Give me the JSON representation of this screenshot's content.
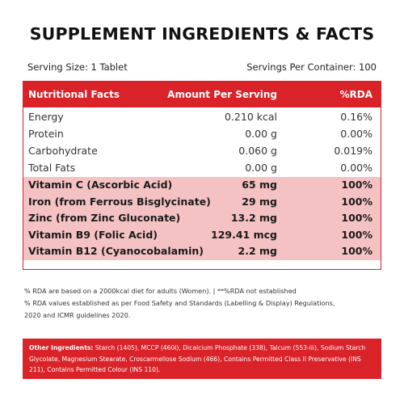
{
  "title": "SUPPLEMENT INGREDIENTS & FACTS",
  "serving_size": "Serving Size: 1 Tablet",
  "servings_per_container": "Servings Per Container: 100",
  "table": {
    "headers": [
      "Nutritional Facts",
      "Amount Per Serving",
      "%RDA"
    ],
    "rows": [
      {
        "name": "Energy",
        "amount": "0.210 kcal",
        "rda": "0.16%",
        "highlight": false
      },
      {
        "name": "Protein",
        "amount": "0.00 g",
        "rda": "0.00%",
        "highlight": false
      },
      {
        "name": "Carbohydrate",
        "amount": "0.060 g",
        "rda": "0.019%",
        "highlight": false
      },
      {
        "name": "Total Fats",
        "amount": "0.00 g",
        "rda": "0.00%",
        "highlight": false
      },
      {
        "name": "Vitamin C (Ascorbic Acid)",
        "amount": "65 mg",
        "rda": "100%",
        "highlight": true
      },
      {
        "name": "Iron (from Ferrous Bisglycinate)",
        "amount": "29 mg",
        "rda": "100%",
        "highlight": true
      },
      {
        "name": "Zinc (from Zinc Gluconate)",
        "amount": "13.2 mg",
        "rda": "100%",
        "highlight": true
      },
      {
        "name": "Vitamin B9 (Folic Acid)",
        "amount": "129.41 mcg",
        "rda": "100%",
        "highlight": true
      },
      {
        "name": "Vitamin B12 (Cyanocobalamin)",
        "amount": "2.2 mg",
        "rda": "100%",
        "highlight": true
      }
    ]
  },
  "notes": [
    "% RDA are based on a 2000kcal diet for adults (Women). | **%RDA not established",
    "% RDA values established as per Food Safety and Standards (Labelling & Display) Regulations,",
    "2020 and ICMR guidelines 2020."
  ],
  "other_ingredients": {
    "label": "Other Ingredients:",
    "text": " Starch (1405), MCCP (460i), Dicalcium Phosphate (338), Talcum (553-iii), Sodium Starch Glycolate, Magnesium Stearate, Croscarmellose Sodium (466), Contains Permitted Class II Preservative (INS 211), Contains Permitted Colour (INS 110)."
  },
  "colors": {
    "accent": "#d92329",
    "highlight_row": "#f5c2c4"
  }
}
